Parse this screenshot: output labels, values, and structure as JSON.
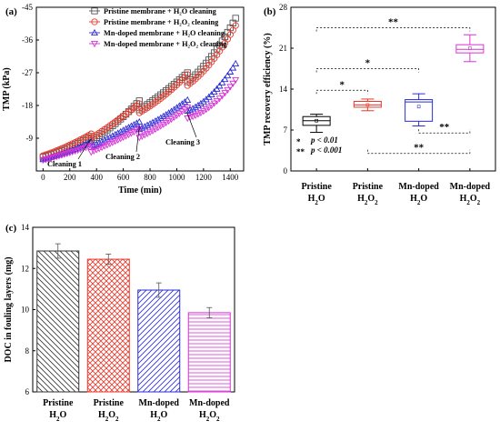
{
  "chart_data": [
    {
      "panel": "(a)",
      "type": "scatter",
      "xlabel": "Time (min)",
      "ylabel": "TMP (kPa)",
      "xlim": [
        -50,
        1500
      ],
      "ylim": [
        0,
        -45
      ],
      "x_ticks": [
        0,
        200,
        400,
        600,
        800,
        1000,
        1200,
        1400
      ],
      "y_ticks": [
        -9,
        -18,
        -27,
        -36,
        -45
      ],
      "legend_position": "top-right",
      "series": [
        {
          "name": "Pristine membrane + H₂O cleaning",
          "color": "#555555",
          "marker": "square",
          "points": [
            [
              0,
              -3.8
            ],
            [
              180,
              -6.2
            ],
            [
              360,
              -9.5
            ],
            [
              360,
              -8.3
            ],
            [
              540,
              -13
            ],
            [
              720,
              -19.3
            ],
            [
              720,
              -16.8
            ],
            [
              900,
              -21.5
            ],
            [
              1080,
              -27
            ],
            [
              1080,
              -24.5
            ],
            [
              1260,
              -31.5
            ],
            [
              1440,
              -42
            ]
          ]
        },
        {
          "name": "Pristine membrane + H₂O₂ cleaning",
          "color": "#e8382b",
          "marker": "circle",
          "points": [
            [
              0,
              -4.2
            ],
            [
              180,
              -6.8
            ],
            [
              360,
              -10.2
            ],
            [
              360,
              -9
            ],
            [
              540,
              -13.5
            ],
            [
              720,
              -18.5
            ],
            [
              720,
              -16
            ],
            [
              900,
              -20.5
            ],
            [
              1080,
              -26.5
            ],
            [
              1080,
              -23.5
            ],
            [
              1260,
              -30
            ],
            [
              1440,
              -40
            ]
          ]
        },
        {
          "name": "Mn-doped membrane + H₂O cleaning",
          "color": "#2b2bd6",
          "marker": "triangle",
          "points": [
            [
              0,
              -3.2
            ],
            [
              180,
              -5.2
            ],
            [
              360,
              -8
            ],
            [
              360,
              -6.5
            ],
            [
              540,
              -10
            ],
            [
              720,
              -13.5
            ],
            [
              720,
              -11.5
            ],
            [
              900,
              -15
            ],
            [
              1080,
              -19.5
            ],
            [
              1080,
              -16.5
            ],
            [
              1260,
              -21
            ],
            [
              1440,
              -29.5
            ]
          ]
        },
        {
          "name": "Mn-doped membrane + H₂O₂ cleaning",
          "color": "#d633d6",
          "marker": "triangle-down",
          "points": [
            [
              0,
              -3
            ],
            [
              180,
              -4.8
            ],
            [
              360,
              -7
            ],
            [
              360,
              -5.2
            ],
            [
              540,
              -8.2
            ],
            [
              720,
              -11.5
            ],
            [
              720,
              -9.2
            ],
            [
              900,
              -12.8
            ],
            [
              1080,
              -17.5
            ],
            [
              1080,
              -14.5
            ],
            [
              1260,
              -18
            ],
            [
              1440,
              -25
            ]
          ]
        }
      ],
      "annotations": [
        "Cleaning 1",
        "Cleaning 2",
        "Cleaning 3"
      ]
    },
    {
      "panel": "(b)",
      "type": "box",
      "ylabel": "TMP recovery efficiency (%)",
      "ylim": [
        0,
        28
      ],
      "y_ticks": [
        0,
        7,
        14,
        21,
        28
      ],
      "categories": [
        "Pristine|H2O",
        "Pristine|H2O2",
        "Mn-doped|H2O",
        "Mn-doped|H2O2"
      ],
      "boxes": [
        {
          "color": "#000000",
          "min": 6.6,
          "q1": 7.8,
          "median": 8.6,
          "q3": 9.3,
          "max": 9.7,
          "mean": 8.6
        },
        {
          "color": "#e8382b",
          "min": 10.3,
          "q1": 10.9,
          "median": 11.3,
          "q3": 11.9,
          "max": 12.3,
          "mean": 11.3
        },
        {
          "color": "#2b2bd6",
          "min": 7.7,
          "q1": 8.5,
          "median": 11.8,
          "q3": 12.2,
          "max": 13.2,
          "mean": 11
        },
        {
          "color": "#d633d6",
          "min": 18.7,
          "q1": 20.2,
          "median": 20.8,
          "q3": 21.6,
          "max": 23.3,
          "mean": 21
        }
      ],
      "significance": [
        {
          "label": "*",
          "from": 0,
          "to": 1,
          "y": 13.8
        },
        {
          "label": "*",
          "from": 0,
          "to": 2,
          "y": 17.5
        },
        {
          "label": "**",
          "from": 0,
          "to": 3,
          "y": 24.5
        },
        {
          "label": "**",
          "from": 2,
          "to": 3,
          "y": 6.5
        },
        {
          "label": "**",
          "from": 1,
          "to": 3,
          "y": 3
        }
      ],
      "legend_notes": [
        {
          "stars": "*",
          "text": "p < 0.01"
        },
        {
          "stars": "**",
          "text": "p < 0.001"
        }
      ]
    },
    {
      "panel": "(c)",
      "type": "bar",
      "ylabel": "DOC in fouling layers (mg)",
      "ylim": [
        6,
        14
      ],
      "y_ticks": [
        6,
        8,
        10,
        12,
        14
      ],
      "categories": [
        "Pristine|H2O",
        "Pristine|H2O2",
        "Mn-doped|H2O",
        "Mn-doped|H2O2"
      ],
      "values": [
        12.85,
        12.45,
        10.95,
        9.85
      ],
      "errors": [
        0.35,
        0.25,
        0.35,
        0.25
      ],
      "colors": [
        "#333333",
        "#e8382b",
        "#2b2bd6",
        "#d633d6"
      ],
      "hatches": [
        "diagonal-back",
        "crosshatch",
        "diagonal-forward",
        "horizontal"
      ]
    }
  ]
}
